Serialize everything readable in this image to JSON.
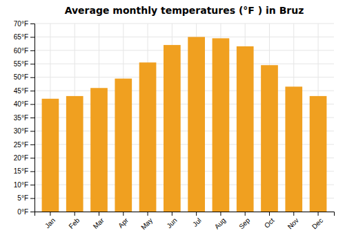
{
  "chart_data": {
    "type": "bar",
    "title": "Average monthly temperatures (°F ) in Bruz",
    "categories": [
      "Jan",
      "Feb",
      "Mar",
      "Apr",
      "May",
      "Jun",
      "Jul",
      "Aug",
      "Sep",
      "Oct",
      "Nov",
      "Dec"
    ],
    "values": [
      42,
      43,
      46,
      49.5,
      55.5,
      62,
      65,
      64.5,
      61.5,
      54.5,
      46.5,
      43
    ],
    "color": "#F0A020",
    "ylim": [
      0,
      70
    ],
    "yticks": [
      {
        "value": 0,
        "label": "0°F"
      },
      {
        "value": 5,
        "label": "5°F"
      },
      {
        "value": 10,
        "label": "10°F"
      },
      {
        "value": 15,
        "label": "15°F"
      },
      {
        "value": 20,
        "label": "20°F"
      },
      {
        "value": 25,
        "label": "25°F"
      },
      {
        "value": 30,
        "label": "30°F"
      },
      {
        "value": 35,
        "label": "35°F"
      },
      {
        "value": 40,
        "label": "40°F"
      },
      {
        "value": 45,
        "label": "45°F"
      },
      {
        "value": 50,
        "label": "50°F"
      },
      {
        "value": 55,
        "label": "55°F"
      },
      {
        "value": 60,
        "label": "60°F"
      },
      {
        "value": 65,
        "label": "65°F"
      },
      {
        "value": 70,
        "label": "70°F"
      }
    ],
    "grid": true
  }
}
